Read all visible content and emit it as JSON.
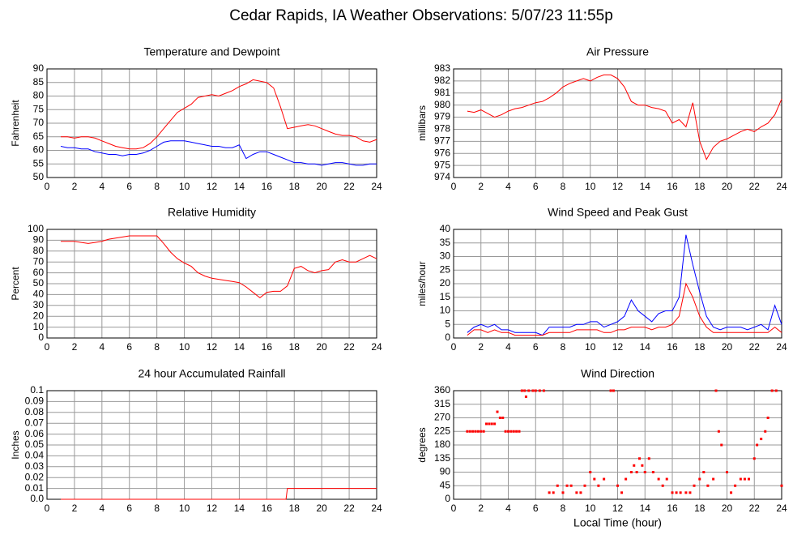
{
  "title": "Cedar Rapids, IA Weather Observations: 5/07/23 11:55p",
  "chart_data": [
    {
      "type": "line",
      "title": "Temperature and Dewpoint",
      "ylabel": "Fahrenheit",
      "x": [
        1,
        1.5,
        2,
        2.5,
        3,
        3.5,
        4,
        4.5,
        5,
        5.5,
        6,
        6.5,
        7,
        7.5,
        8,
        8.5,
        9,
        9.5,
        10,
        10.5,
        11,
        11.5,
        12,
        12.5,
        13,
        13.5,
        14,
        14.5,
        15,
        15.5,
        16,
        16.5,
        17,
        17.5,
        18,
        18.5,
        19,
        19.5,
        20,
        20.5,
        21,
        21.5,
        22,
        22.5,
        23,
        23.5,
        24
      ],
      "series": [
        {
          "color": "#ff0000",
          "values": [
            65,
            65,
            64.5,
            65,
            65,
            64.5,
            63.5,
            62.5,
            61.5,
            61,
            60.5,
            60.5,
            61,
            62.5,
            65,
            68,
            71,
            74,
            75.5,
            77,
            79.5,
            80,
            80.5,
            80,
            81,
            82,
            83.5,
            84.5,
            86,
            85.5,
            85,
            83,
            76,
            68,
            68.5,
            69,
            69.5,
            69,
            68,
            67,
            66,
            65.5,
            65.5,
            65,
            63.5,
            63,
            64
          ]
        },
        {
          "color": "#0000ff",
          "values": [
            61.5,
            61,
            61,
            60.5,
            60.5,
            59.5,
            59,
            58.5,
            58.5,
            58,
            58.5,
            58.5,
            59,
            60,
            61.5,
            63,
            63.5,
            63.5,
            63.5,
            63,
            62.5,
            62,
            61.5,
            61.5,
            61,
            61,
            62,
            57,
            58.5,
            59.5,
            59.5,
            58.5,
            57.5,
            56.5,
            55.5,
            55.5,
            55,
            55,
            54.5,
            55,
            55.5,
            55.5,
            55,
            54.5,
            54.5,
            55,
            55
          ]
        }
      ],
      "xlim": [
        0,
        24
      ],
      "xticks": [
        0,
        2,
        4,
        6,
        8,
        10,
        12,
        14,
        16,
        18,
        20,
        22,
        24
      ],
      "ylim": [
        50,
        90
      ],
      "yticks": [
        50,
        55,
        60,
        65,
        70,
        75,
        80,
        85,
        90
      ],
      "grid": true
    },
    {
      "type": "line",
      "title": "Air Pressure",
      "ylabel": "millibars",
      "x": [
        1,
        1.5,
        2,
        2.5,
        3,
        3.5,
        4,
        4.5,
        5,
        5.5,
        6,
        6.5,
        7,
        7.5,
        8,
        8.5,
        9,
        9.5,
        10,
        10.5,
        11,
        11.5,
        12,
        12.5,
        13,
        13.5,
        14,
        14.5,
        15,
        15.5,
        16,
        16.5,
        17,
        17.5,
        18,
        18.5,
        19,
        19.5,
        20,
        20.5,
        21,
        21.5,
        22,
        22.5,
        23,
        23.5,
        24
      ],
      "series": [
        {
          "color": "#ff0000",
          "values": [
            979.5,
            979.4,
            979.6,
            979.3,
            979.0,
            979.2,
            979.5,
            979.7,
            979.8,
            980.0,
            980.2,
            980.3,
            980.6,
            981.0,
            981.5,
            981.8,
            982.0,
            982.2,
            982.0,
            982.3,
            982.5,
            982.5,
            982.2,
            981.5,
            980.3,
            980.0,
            980.0,
            979.8,
            979.7,
            979.5,
            978.5,
            978.8,
            978.2,
            980.2,
            977.0,
            975.5,
            976.5,
            977.0,
            977.2,
            977.5,
            977.8,
            978.0,
            977.8,
            978.2,
            978.5,
            979.2,
            980.5
          ]
        }
      ],
      "xlim": [
        0,
        24
      ],
      "xticks": [
        0,
        2,
        4,
        6,
        8,
        10,
        12,
        14,
        16,
        18,
        20,
        22,
        24
      ],
      "ylim": [
        974,
        983
      ],
      "yticks": [
        974,
        975,
        976,
        977,
        978,
        979,
        980,
        981,
        982,
        983
      ],
      "grid": true
    },
    {
      "type": "line",
      "title": "Relative Humidity",
      "ylabel": "Percent",
      "x": [
        1,
        1.5,
        2,
        2.5,
        3,
        3.5,
        4,
        4.5,
        5,
        5.5,
        6,
        6.5,
        7,
        7.5,
        8,
        8.5,
        9,
        9.5,
        10,
        10.5,
        11,
        11.5,
        12,
        12.5,
        13,
        13.5,
        14,
        14.5,
        15,
        15.5,
        16,
        16.5,
        17,
        17.5,
        18,
        18.5,
        19,
        19.5,
        20,
        20.5,
        21,
        21.5,
        22,
        22.5,
        23,
        23.5,
        24
      ],
      "series": [
        {
          "color": "#ff0000",
          "values": [
            89,
            89,
            89,
            88,
            87,
            88,
            89,
            91,
            92,
            93,
            94,
            94,
            94,
            94,
            94,
            87,
            79,
            73,
            69,
            66,
            60,
            57,
            55,
            54,
            53,
            52,
            51,
            47,
            42,
            37,
            42,
            43,
            43,
            48,
            64,
            66,
            62,
            60,
            62,
            63,
            70,
            72,
            70,
            70,
            73,
            76,
            73
          ]
        }
      ],
      "xlim": [
        0,
        24
      ],
      "xticks": [
        0,
        2,
        4,
        6,
        8,
        10,
        12,
        14,
        16,
        18,
        20,
        22,
        24
      ],
      "ylim": [
        0,
        100
      ],
      "yticks": [
        0,
        10,
        20,
        30,
        40,
        50,
        60,
        70,
        80,
        90,
        100
      ],
      "grid": true
    },
    {
      "type": "line",
      "title": "Wind Speed and Peak Gust",
      "ylabel": "miles/hour",
      "x": [
        1,
        1.5,
        2,
        2.5,
        3,
        3.5,
        4,
        4.5,
        5,
        5.5,
        6,
        6.5,
        7,
        7.5,
        8,
        8.5,
        9,
        9.5,
        10,
        10.5,
        11,
        11.5,
        12,
        12.5,
        13,
        13.5,
        14,
        14.5,
        15,
        15.5,
        16,
        16.5,
        17,
        17.5,
        18,
        18.5,
        19,
        19.5,
        20,
        20.5,
        21,
        21.5,
        22,
        22.5,
        23,
        23.5,
        24
      ],
      "series": [
        {
          "color": "#0000ff",
          "values": [
            2,
            4,
            5,
            4,
            5,
            3,
            3,
            2,
            2,
            2,
            2,
            1,
            4,
            4,
            4,
            4,
            5,
            5,
            6,
            6,
            4,
            5,
            6,
            8,
            14,
            10,
            8,
            6,
            9,
            10,
            10,
            15,
            38,
            27,
            17,
            8,
            4,
            3,
            4,
            4,
            4,
            3,
            4,
            5,
            3,
            12,
            5
          ]
        },
        {
          "color": "#ff0000",
          "values": [
            1,
            3,
            3,
            2,
            3,
            2,
            2,
            1,
            1,
            1,
            1,
            1,
            2,
            2,
            2,
            2,
            3,
            3,
            3,
            3,
            2,
            2,
            3,
            3,
            4,
            4,
            4,
            3,
            4,
            4,
            5,
            8,
            20,
            15,
            8,
            4,
            2,
            2,
            2,
            2,
            2,
            2,
            2,
            2,
            2,
            4,
            2
          ]
        }
      ],
      "xlim": [
        0,
        24
      ],
      "xticks": [
        0,
        2,
        4,
        6,
        8,
        10,
        12,
        14,
        16,
        18,
        20,
        22,
        24
      ],
      "ylim": [
        0,
        40
      ],
      "yticks": [
        0,
        5,
        10,
        15,
        20,
        25,
        30,
        35,
        40
      ],
      "grid": true
    },
    {
      "type": "line",
      "title": "24 hour Accumulated Rainfall",
      "ylabel": "Inches",
      "x": [
        1,
        17.4,
        17.5,
        24
      ],
      "series": [
        {
          "color": "#ff0000",
          "values": [
            0,
            0,
            0.01,
            0.01
          ]
        }
      ],
      "xlim": [
        0,
        24
      ],
      "xticks": [
        0,
        2,
        4,
        6,
        8,
        10,
        12,
        14,
        16,
        18,
        20,
        22,
        24
      ],
      "ylim": [
        0,
        0.1
      ],
      "yticks": [
        {
          "value": 0,
          "label": "0.0"
        },
        0.01,
        0.02,
        0.03,
        0.04,
        0.05,
        0.06,
        0.07,
        0.08,
        0.09,
        0.1
      ],
      "grid": true
    },
    {
      "type": "scatter",
      "title": "Wind Direction",
      "ylabel": "degrees",
      "xlabel": "Local Time (hour)",
      "color": "#ff0000",
      "x": [
        1,
        1.2,
        1.4,
        1.6,
        1.8,
        2,
        2.2,
        2.4,
        2.6,
        2.8,
        3,
        3.2,
        3.4,
        3.6,
        3.8,
        4,
        4.2,
        4.4,
        4.6,
        4.8,
        5,
        5.2,
        5.3,
        5.5,
        5.8,
        6,
        6.3,
        6.6,
        7,
        7.3,
        7.6,
        8,
        8.3,
        8.6,
        9,
        9.3,
        9.6,
        10,
        10.3,
        10.6,
        11,
        11.5,
        11.7,
        12,
        12.3,
        12.6,
        13,
        13.2,
        13.4,
        13.6,
        13.8,
        14,
        14.3,
        14.6,
        15,
        15.3,
        15.6,
        16,
        16.3,
        16.6,
        17,
        17.3,
        17.6,
        18,
        18.3,
        18.6,
        19,
        19.2,
        19.4,
        19.6,
        20,
        20.3,
        20.6,
        21,
        21.3,
        21.6,
        22,
        22.2,
        22.5,
        22.8,
        23,
        23.3,
        23.6,
        24
      ],
      "values": [
        225,
        225,
        225,
        225,
        225,
        225,
        225,
        250,
        250,
        250,
        250,
        290,
        270,
        270,
        225,
        225,
        225,
        225,
        225,
        225,
        360,
        360,
        340,
        360,
        360,
        360,
        360,
        360,
        22,
        22,
        45,
        22,
        45,
        45,
        22,
        22,
        45,
        90,
        67,
        45,
        67,
        360,
        360,
        45,
        22,
        67,
        90,
        112,
        90,
        135,
        112,
        90,
        135,
        90,
        67,
        45,
        67,
        22,
        22,
        22,
        22,
        22,
        45,
        67,
        90,
        45,
        67,
        360,
        225,
        180,
        90,
        22,
        45,
        67,
        67,
        67,
        135,
        180,
        200,
        225,
        270,
        360,
        360,
        45
      ],
      "xlim": [
        0,
        24
      ],
      "xticks": [
        0,
        2,
        4,
        6,
        8,
        10,
        12,
        14,
        16,
        18,
        20,
        22,
        24
      ],
      "ylim": [
        0,
        360
      ],
      "yticks": [
        0,
        45,
        90,
        135,
        180,
        225,
        270,
        315,
        360
      ],
      "grid": true
    }
  ]
}
